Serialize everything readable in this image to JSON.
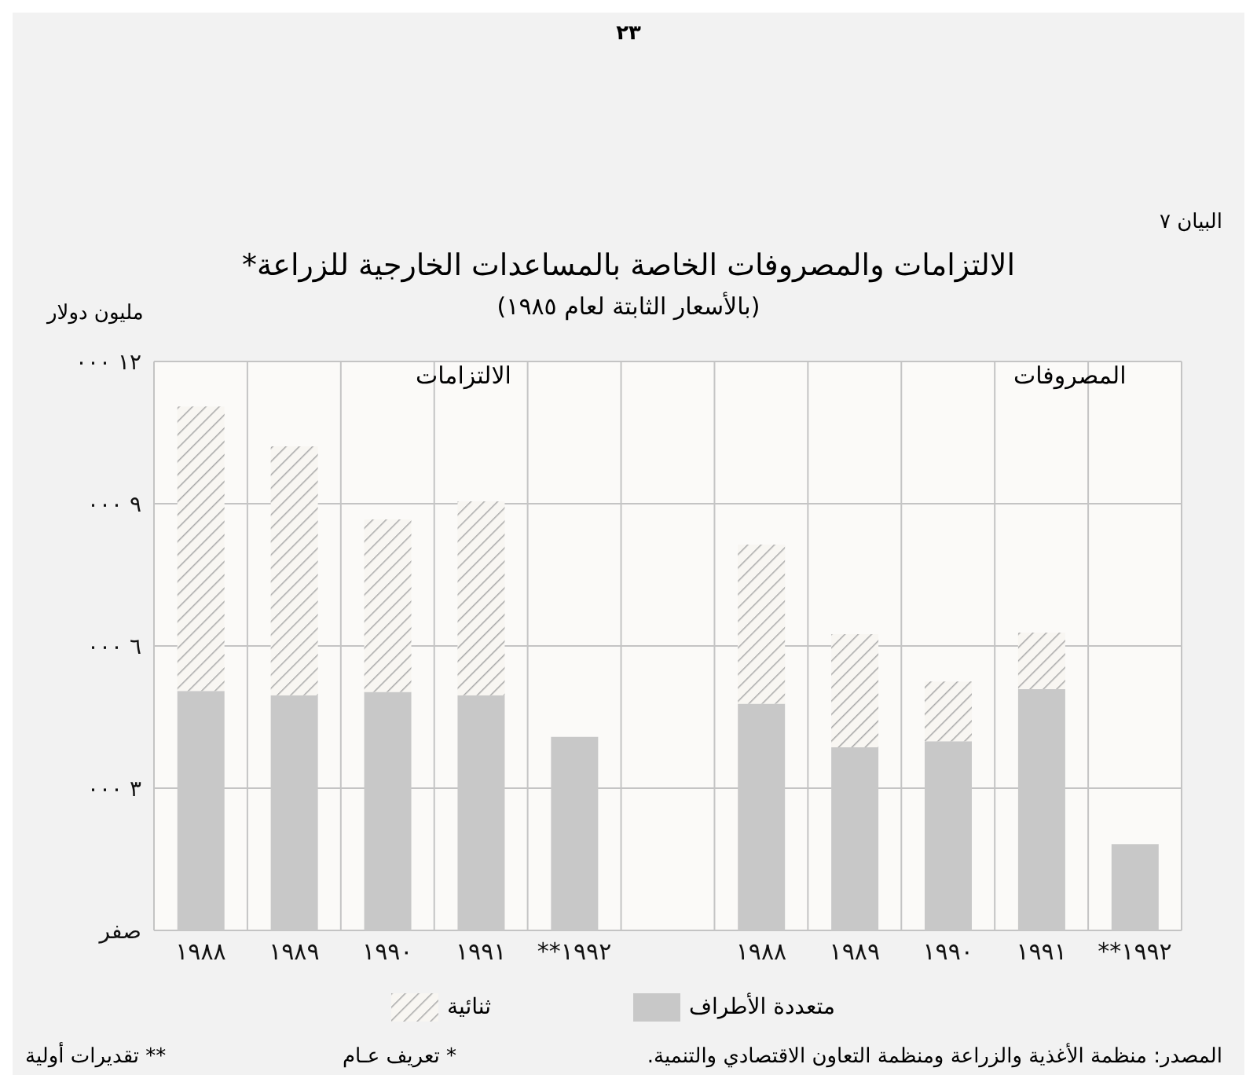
{
  "chart_data": {
    "type": "bar",
    "title": "الالتزامات والمصروفات الخاصة بالمساعدات الخارجية للزراعة*",
    "subtitle": "(بالأسعار الثابتة لعام ١٩٨٥)",
    "ylabel": "مليون دولار",
    "categories": [
      "١٩٨٨",
      "١٩٨٩",
      "١٩٩٠",
      "١٩٩١",
      "**١٩٩٢",
      null,
      "١٩٨٨",
      "١٩٨٩",
      "١٩٩٠",
      "١٩٩١",
      "**١٩٩٢"
    ],
    "series": [
      {
        "name": "متعددة الأطراف",
        "color": "#c8c8c8",
        "values": [
          5050,
          4960,
          5030,
          4960,
          4080,
          null,
          4780,
          3860,
          3990,
          5090,
          1820
        ]
      },
      {
        "name": "ثنائية",
        "color": "#a8a8a8",
        "values": [
          6000,
          5250,
          3640,
          4090,
          null,
          null,
          3360,
          2390,
          1260,
          1190,
          null
        ]
      }
    ],
    "stacked": true,
    "ylim": [
      0,
      12000
    ],
    "yticks": [
      {
        "value": 0,
        "label": "صفر"
      },
      {
        "value": 3000,
        "label": "٣ ٠٠٠"
      },
      {
        "value": 6000,
        "label": "٦ ٠٠٠"
      },
      {
        "value": 9000,
        "label": "٩ ٠٠٠"
      },
      {
        "value": 12000,
        "label": "١٢ ٠٠٠"
      }
    ],
    "grid": true,
    "legend": "bottom",
    "annotations": [
      "الالتزامات",
      "المصروفات",
      "البيان ٧",
      "٢٣",
      "المصدر: منظمة الأغذية والزراعة ومنظمة التعاون الاقتصادي والتنمية.",
      "* تعريف عـام",
      "** تقديرات أولية"
    ]
  }
}
